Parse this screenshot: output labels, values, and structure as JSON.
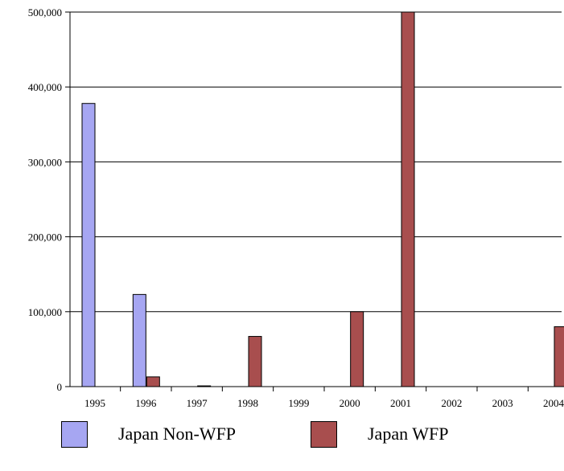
{
  "chart_data": {
    "type": "bar",
    "categories": [
      "1995",
      "1996",
      "1997",
      "1998",
      "1999",
      "2000",
      "2001",
      "2002",
      "2003",
      "2004"
    ],
    "series": [
      {
        "name": "Japan Non-WFP",
        "color": "#a6a6f2",
        "values": [
          378000,
          123000,
          0,
          0,
          0,
          0,
          0,
          0,
          0,
          0
        ]
      },
      {
        "name": "Japan WFP",
        "color": "#a84e4e",
        "values": [
          0,
          13000,
          1000,
          67000,
          0,
          100000,
          500000,
          0,
          0,
          80000
        ]
      }
    ],
    "y_ticks": [
      "0",
      "100,000",
      "200,000",
      "300,000",
      "400,000",
      "500,000"
    ],
    "ylim": [
      0,
      500000
    ],
    "grid": true,
    "legend_position": "bottom"
  }
}
